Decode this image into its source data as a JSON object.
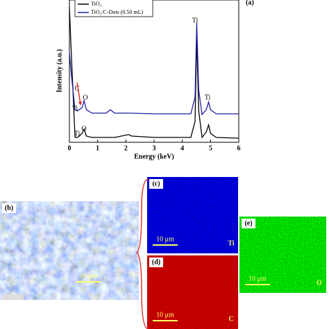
{
  "chart_data": {
    "type": "line",
    "panel_label": "(a)",
    "xlabel": "Energy (keV)",
    "ylabel": "Intensity (a.u.)",
    "x": [
      0,
      0.05,
      0.2,
      0.28,
      0.35,
      0.45,
      0.52,
      0.6,
      0.8,
      1.3,
      1.45,
      1.6,
      2.1,
      2.2,
      3,
      4.3,
      4.45,
      4.51,
      4.58,
      4.7,
      4.85,
      4.93,
      5.0,
      5.2,
      6
    ],
    "series": [
      {
        "name": "TiO₂",
        "color": "#000000",
        "values": [
          95,
          70.7,
          3.4,
          3.4,
          4.4,
          6.3,
          9.3,
          4.4,
          3.4,
          3.4,
          3.4,
          3.4,
          5.4,
          4.4,
          3.4,
          3.4,
          14.6,
          73.2,
          22.0,
          3.4,
          7.3,
          12.2,
          6.3,
          3.4,
          2.9
        ]
      },
      {
        "name": "TiO₂/C-Dots (0.50 mL)",
        "color": "#1f1fa0",
        "values": [
          63.4,
          51.2,
          22.9,
          22.0,
          22.9,
          24.4,
          29.3,
          22.9,
          20.5,
          20.5,
          22.9,
          20.5,
          20.5,
          20.5,
          20.0,
          20.0,
          31.7,
          83.9,
          36.6,
          19.5,
          22.9,
          28.3,
          22.9,
          20.0,
          20.0
        ]
      }
    ],
    "xlim": [
      0,
      6
    ],
    "ylim": [
      0,
      100
    ],
    "xticks": [
      0,
      1,
      2,
      3,
      4,
      5,
      6
    ],
    "annotations": [
      "Ti",
      "Ti",
      "C",
      "Ti",
      "O",
      "Ti",
      "O"
    ]
  },
  "panels": [
    {
      "label": "(b)",
      "scale": "10 μm"
    },
    {
      "label": "(c)",
      "scale": "10 μm",
      "element": "Ti"
    },
    {
      "label": "(d)",
      "scale": "10 μm",
      "element": "C"
    },
    {
      "label": "(e)",
      "scale": "10 μm",
      "element": "O"
    }
  ]
}
